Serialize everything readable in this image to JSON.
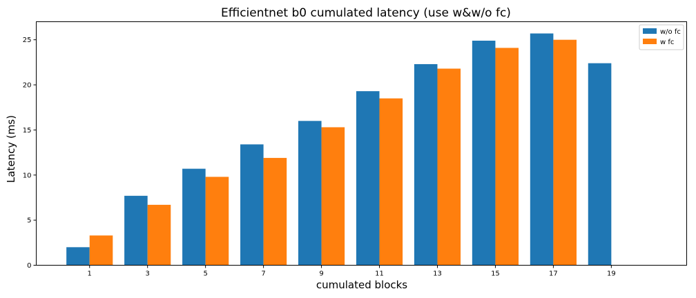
{
  "chart_data": {
    "type": "bar",
    "title": "Efficientnet b0 cumulated latency (use w&w/o fc)",
    "xlabel": "cumulated blocks",
    "ylabel": "Latency (ms)",
    "categories": [
      "1",
      "3",
      "5",
      "7",
      "9",
      "11",
      "13",
      "15",
      "17",
      "19"
    ],
    "xlim": [
      -0.92,
      10.3
    ],
    "ylim": [
      0,
      27
    ],
    "yticks": [
      0,
      5,
      10,
      15,
      20,
      25
    ],
    "grid": false,
    "legend_position": "top-right",
    "series": [
      {
        "name": "w/o fc",
        "color": "#1f77b4",
        "values": [
          2.0,
          7.7,
          10.7,
          13.4,
          16.0,
          19.3,
          22.3,
          24.9,
          25.7,
          22.4
        ]
      },
      {
        "name": "w fc",
        "color": "#ff7f0e",
        "values": [
          3.3,
          6.7,
          9.8,
          11.9,
          15.3,
          18.5,
          21.8,
          24.1,
          25.0,
          null
        ]
      }
    ]
  }
}
